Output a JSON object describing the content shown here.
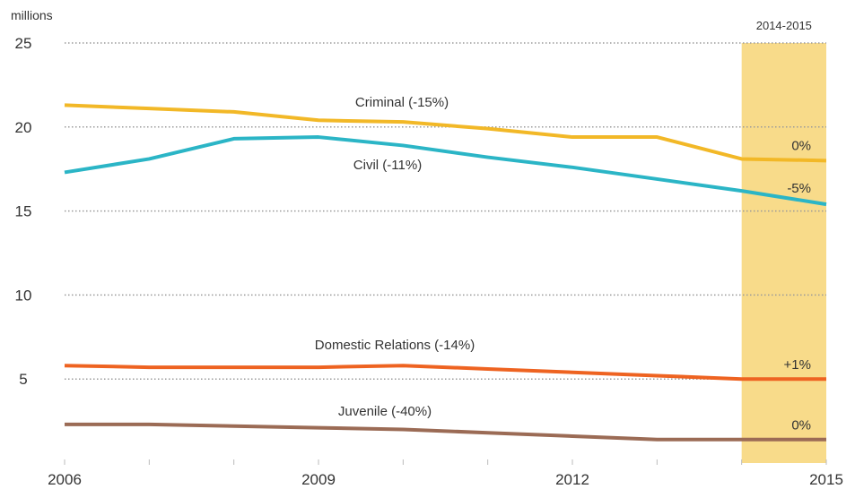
{
  "chart_data": {
    "type": "line",
    "unit_label": "millions",
    "x": [
      2006,
      2007,
      2008,
      2009,
      2010,
      2011,
      2012,
      2013,
      2014,
      2015
    ],
    "x_ticks": [
      "2006",
      "2009",
      "2012",
      "2015"
    ],
    "y_ticks": [
      "5",
      "10",
      "15",
      "20",
      "25"
    ],
    "ylim": [
      0,
      25
    ],
    "xlim": [
      2006,
      2015
    ],
    "grid": "horizontal dotted",
    "highlight": {
      "label": "2014-2015",
      "from": 2014,
      "to": 2015,
      "color": "#f8db8a"
    },
    "series": [
      {
        "name": "Criminal",
        "label": "Criminal  (-15%)",
        "change": "0%",
        "color": "#f2b827",
        "values": [
          21.3,
          21.1,
          20.9,
          20.4,
          20.3,
          19.9,
          19.4,
          19.4,
          18.1,
          18.0
        ]
      },
      {
        "name": "Civil",
        "label": "Civil  (-11%)",
        "change": "-5%",
        "color": "#2bb5c6",
        "values": [
          17.3,
          18.1,
          19.3,
          19.4,
          18.9,
          18.2,
          17.6,
          16.9,
          16.2,
          15.4
        ]
      },
      {
        "name": "Domestic Relations",
        "label": "Domestic Relations  (-14%)",
        "change": "+1%",
        "color": "#ee6321",
        "values": [
          5.8,
          5.7,
          5.7,
          5.7,
          5.8,
          5.6,
          5.4,
          5.2,
          5.0,
          5.0
        ]
      },
      {
        "name": "Juvenile",
        "label": "Juvenile  (-40%)",
        "change": "0%",
        "color": "#9b6b55",
        "values": [
          2.3,
          2.3,
          2.2,
          2.1,
          2.0,
          1.8,
          1.6,
          1.4,
          1.4,
          1.4
        ]
      }
    ]
  }
}
